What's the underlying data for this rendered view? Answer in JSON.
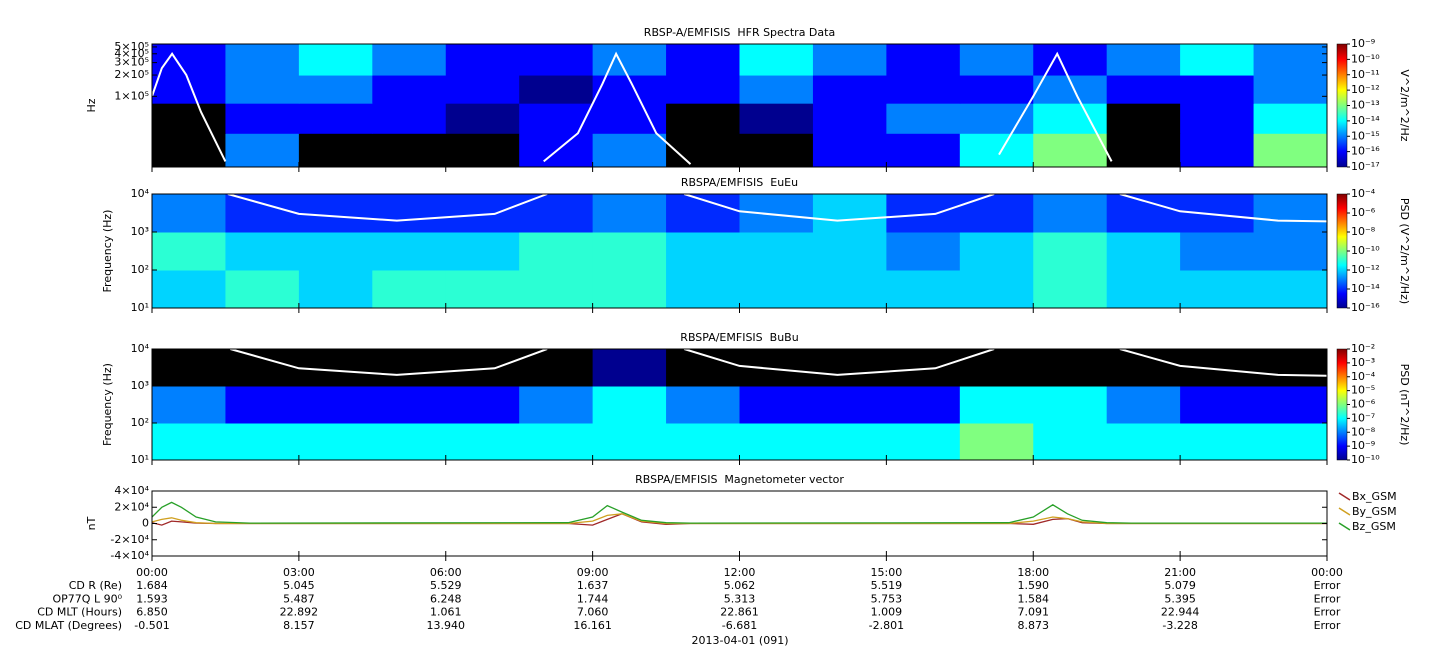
{
  "chart_data": [
    {
      "type": "spectrogram",
      "title": "RBSP-A/EMFISIS  HFR Spectra Data",
      "ylabel": "Hz",
      "zlabel": "V^2/m^2/Hz",
      "xlim": [
        0,
        24
      ],
      "ylim": [
        10000,
        550000
      ],
      "ylog": true,
      "yticks": [
        {
          "value": 100000,
          "label": "1×10⁵"
        },
        {
          "value": 200000,
          "label": "2×10⁵"
        },
        {
          "value": 300000,
          "label": "3×10⁵"
        },
        {
          "value": 400000,
          "label": "4×10⁵"
        },
        {
          "value": 500000,
          "label": "5×10⁵"
        }
      ],
      "zlim": [
        1e-17,
        1e-09
      ],
      "zlog": true,
      "colormap": "jet",
      "zticks": [
        {
          "value": 1e-09,
          "label": "10⁻⁹"
        },
        {
          "value": 1e-10,
          "label": "10⁻¹⁰"
        },
        {
          "value": 1e-11,
          "label": "10⁻¹¹"
        },
        {
          "value": 1e-12,
          "label": "10⁻¹²"
        },
        {
          "value": 1e-13,
          "label": "10⁻¹³"
        },
        {
          "value": 1e-14,
          "label": "10⁻¹⁴"
        },
        {
          "value": 1e-15,
          "label": "10⁻¹⁵"
        },
        {
          "value": 1e-16,
          "label": "10⁻¹⁶"
        },
        {
          "value": 1e-17,
          "label": "10⁻¹⁷"
        }
      ],
      "xbins": [
        0,
        1.5,
        3,
        4.5,
        6,
        7.5,
        9,
        10.5,
        12,
        13.5,
        15,
        16.5,
        18,
        19.5,
        21,
        22.5,
        24
      ],
      "ybins": [
        10000,
        30000,
        80000,
        200000,
        550000
      ],
      "z": [
        [
          1e-18,
          1e-15,
          1e-18,
          1e-18,
          1e-18,
          1e-16,
          1e-15,
          1e-18,
          1e-18,
          1e-16,
          1e-16,
          1e-14,
          1e-13,
          1e-18,
          1e-16,
          1e-13
        ],
        [
          1e-18,
          1e-16,
          1e-16,
          1e-16,
          1e-17,
          1e-16,
          1e-16,
          1e-18,
          1e-17,
          1e-16,
          1e-15,
          1e-15,
          1e-14,
          1e-18,
          1e-16,
          1e-14
        ],
        [
          1e-16,
          1e-15,
          1e-15,
          1e-16,
          1e-16,
          1e-17,
          1e-16,
          1e-16,
          1e-15,
          1e-16,
          1e-16,
          1e-16,
          1e-15,
          1e-16,
          1e-16,
          1e-15
        ],
        [
          1e-16,
          1e-15,
          1e-14,
          1e-15,
          1e-16,
          1e-16,
          1e-15,
          1e-16,
          1e-14,
          1e-15,
          1e-16,
          1e-15,
          1e-16,
          1e-15,
          1e-14,
          1e-15
        ]
      ],
      "series": [
        {
          "color": "#ffffff",
          "x": [
            0,
            0.2,
            0.41,
            0.7,
            1.0,
            1.5,
            null,
            8.0,
            8.7,
            9.2,
            9.48,
            9.8,
            10.3,
            11.0,
            null,
            17.3,
            18.0,
            18.49,
            18.9,
            19.6
          ],
          "values": [
            100000,
            250000,
            400000,
            200000,
            60000,
            12000,
            null,
            12000,
            30000,
            150000,
            400000,
            150000,
            30000,
            11000,
            null,
            15000,
            100000,
            400000,
            100000,
            12000
          ]
        }
      ]
    },
    {
      "type": "spectrogram",
      "title": "RBSPA/EMFISIS  EuEu",
      "ylabel": "Frequency (Hz)",
      "zlabel": "PSD (V^2/m^2/Hz)",
      "xlim": [
        0,
        24
      ],
      "ylim": [
        10,
        10000
      ],
      "ylog": true,
      "yticks": [
        {
          "value": 10,
          "label": "10¹"
        },
        {
          "value": 100,
          "label": "10²"
        },
        {
          "value": 1000,
          "label": "10³"
        },
        {
          "value": 10000,
          "label": "10⁴"
        }
      ],
      "zlim": [
        1e-16,
        0.0001
      ],
      "zlog": true,
      "colormap": "jet",
      "zticks": [
        {
          "value": 0.0001,
          "label": "10⁻⁴"
        },
        {
          "value": 1e-06,
          "label": "10⁻⁶"
        },
        {
          "value": 1e-08,
          "label": "10⁻⁸"
        },
        {
          "value": 1e-10,
          "label": "10⁻¹⁰"
        },
        {
          "value": 1e-12,
          "label": "10⁻¹²"
        },
        {
          "value": 1e-14,
          "label": "10⁻¹⁴"
        },
        {
          "value": 1e-16,
          "label": "10⁻¹⁶"
        }
      ],
      "xbins": [
        0,
        1.5,
        3,
        4.5,
        6,
        7.5,
        9,
        10.5,
        12,
        13.5,
        15,
        16.5,
        18,
        19.5,
        21,
        22.5,
        24
      ],
      "ybins": [
        10,
        100,
        1000,
        10000
      ],
      "z": [
        [
          1e-12,
          1e-11,
          1e-12,
          1e-11,
          1e-11,
          1e-11,
          1e-11,
          1e-12,
          1e-12,
          1e-12,
          1e-12,
          1e-12,
          1e-11,
          1e-12,
          1e-12,
          1e-12
        ],
        [
          1e-11,
          1e-12,
          1e-12,
          1e-12,
          1e-12,
          1e-11,
          1e-11,
          1e-12,
          1e-12,
          1e-12,
          1e-13,
          1e-12,
          1e-11,
          1e-12,
          1e-13,
          1e-13
        ],
        [
          1e-13,
          1e-14,
          1e-14,
          1e-14,
          1e-14,
          1e-14,
          1e-13,
          1e-14,
          1e-13,
          1e-12,
          1e-14,
          1e-14,
          1e-13,
          1e-14,
          1e-14,
          1e-13
        ]
      ],
      "series": [
        {
          "color": "#ffffff",
          "x": [
            1.55,
            3,
            5,
            7,
            8.07,
            null,
            10.87,
            12,
            14,
            16,
            17.2,
            null,
            19.77,
            21,
            23,
            24
          ],
          "values": [
            10000,
            3000,
            2000,
            3000,
            10000,
            null,
            10000,
            3500,
            2000,
            3000,
            10000,
            null,
            10000,
            3500,
            2000,
            1900
          ]
        }
      ]
    },
    {
      "type": "spectrogram",
      "title": "RBSPA/EMFISIS  BuBu",
      "ylabel": "Frequency (Hz)",
      "zlabel": "PSD (nT^2/Hz)",
      "xlim": [
        0,
        24
      ],
      "ylim": [
        10,
        10000
      ],
      "ylog": true,
      "yticks": [
        {
          "value": 10,
          "label": "10¹"
        },
        {
          "value": 100,
          "label": "10²"
        },
        {
          "value": 1000,
          "label": "10³"
        },
        {
          "value": 10000,
          "label": "10⁴"
        }
      ],
      "zlim": [
        1e-10,
        0.01
      ],
      "zlog": true,
      "colormap": "jet",
      "zticks": [
        {
          "value": 0.01,
          "label": "10⁻²"
        },
        {
          "value": 0.001,
          "label": "10⁻³"
        },
        {
          "value": 0.0001,
          "label": "10⁻⁴"
        },
        {
          "value": 1e-05,
          "label": "10⁻⁵"
        },
        {
          "value": 1e-06,
          "label": "10⁻⁶"
        },
        {
          "value": 1e-07,
          "label": "10⁻⁷"
        },
        {
          "value": 1e-08,
          "label": "10⁻⁸"
        },
        {
          "value": 1e-09,
          "label": "10⁻⁹"
        },
        {
          "value": 1e-10,
          "label": "10⁻¹⁰"
        }
      ],
      "xbins": [
        0,
        1.5,
        3,
        4.5,
        6,
        7.5,
        9,
        10.5,
        12,
        13.5,
        15,
        16.5,
        18,
        19.5,
        21,
        22.5,
        24
      ],
      "ybins": [
        10,
        100,
        1000,
        10000
      ],
      "z": [
        [
          1e-07,
          1e-07,
          1e-07,
          1e-07,
          1e-07,
          1e-07,
          1e-07,
          1e-07,
          1e-07,
          1e-07,
          1e-07,
          1e-06,
          1e-07,
          1e-07,
          1e-07,
          1e-07
        ],
        [
          1e-08,
          1e-09,
          1e-09,
          1e-09,
          1e-09,
          1e-08,
          1e-07,
          1e-08,
          1e-09,
          1e-09,
          1e-09,
          1e-07,
          1e-07,
          1e-08,
          1e-09,
          1e-09
        ],
        [
          1e-11,
          1e-11,
          1e-11,
          1e-11,
          1e-11,
          1e-11,
          1e-10,
          1e-11,
          1e-11,
          1e-11,
          1e-11,
          1e-11,
          1e-11,
          1e-11,
          1e-11,
          1e-11
        ]
      ],
      "series": [
        {
          "color": "#ffffff",
          "x": [
            1.6,
            3,
            5,
            7,
            8.07,
            null,
            10.87,
            12,
            14,
            16,
            17.2,
            null,
            19.77,
            21,
            23,
            24
          ],
          "values": [
            10000,
            3000,
            2000,
            3000,
            10000,
            null,
            10000,
            3500,
            2000,
            3000,
            10000,
            null,
            10000,
            3500,
            2000,
            1900
          ]
        }
      ]
    },
    {
      "type": "line",
      "title": "RBSPA/EMFISIS  Magnetometer vector",
      "ylabel": "nT",
      "xlim": [
        0,
        24
      ],
      "ylim": [
        -40000,
        40000
      ],
      "xticks": [
        {
          "value": 0,
          "label": "00:00"
        },
        {
          "value": 3,
          "label": "03:00"
        },
        {
          "value": 6,
          "label": "06:00"
        },
        {
          "value": 9,
          "label": "09:00"
        },
        {
          "value": 12,
          "label": "12:00"
        },
        {
          "value": 15,
          "label": "15:00"
        },
        {
          "value": 18,
          "label": "18:00"
        },
        {
          "value": 21,
          "label": "21:00"
        },
        {
          "value": 24,
          "label": "00:00"
        }
      ],
      "yticks": [
        {
          "value": -40000,
          "label": "-4×10⁴"
        },
        {
          "value": -20000,
          "label": "-2×10⁴"
        },
        0,
        {
          "value": 20000,
          "label": "2×10⁴"
        },
        {
          "value": 40000,
          "label": "4×10⁴"
        }
      ],
      "x": [
        0,
        0.2,
        0.4,
        0.6,
        0.9,
        1.3,
        2,
        8.5,
        9.0,
        9.3,
        9.6,
        10,
        10.5,
        11,
        17.5,
        18.0,
        18.4,
        18.7,
        19.0,
        19.5,
        20,
        24
      ],
      "series": [
        {
          "name": "Bx_GSM",
          "color": "#a02828",
          "values": [
            1000,
            -2000,
            3000,
            2000,
            500,
            0,
            0,
            0,
            -2000,
            5000,
            12000,
            2000,
            -1000,
            0,
            0,
            -1000,
            5000,
            6000,
            1000,
            0,
            0,
            0
          ]
        },
        {
          "name": "By_GSM",
          "color": "#d0a020",
          "values": [
            2000,
            5000,
            7000,
            4000,
            1000,
            0,
            0,
            0,
            3000,
            10000,
            12000,
            3000,
            0,
            0,
            0,
            3000,
            8000,
            6000,
            2000,
            0,
            0,
            0
          ]
        },
        {
          "name": "Bz_GSM",
          "color": "#28a028",
          "values": [
            8000,
            20000,
            26000,
            20000,
            8000,
            2000,
            500,
            1000,
            8000,
            22000,
            14000,
            4000,
            1000,
            500,
            1000,
            8000,
            23000,
            12000,
            4000,
            1000,
            500,
            500
          ]
        }
      ]
    }
  ],
  "ephemeris": {
    "rows": [
      {
        "label": "CD R (Re)",
        "values": [
          "1.684",
          "5.045",
          "5.529",
          "1.637",
          "5.062",
          "5.519",
          "1.590",
          "5.079",
          "Error"
        ]
      },
      {
        "label": "OP77Q L 90⁰",
        "values": [
          "1.593",
          "5.487",
          "6.248",
          "1.744",
          "5.313",
          "5.753",
          "1.584",
          "5.395",
          "Error"
        ]
      },
      {
        "label": "CD MLT (Hours)",
        "values": [
          "6.850",
          "22.892",
          "1.061",
          "7.060",
          "22.861",
          "1.009",
          "7.091",
          "22.944",
          "Error"
        ]
      },
      {
        "label": "CD MLAT (Degrees)",
        "values": [
          "-0.501",
          "8.157",
          "13.940",
          "16.161",
          "-6.681",
          "-2.801",
          "8.873",
          "-3.228",
          "Error"
        ]
      }
    ],
    "date": "2013-04-01 (091)"
  }
}
